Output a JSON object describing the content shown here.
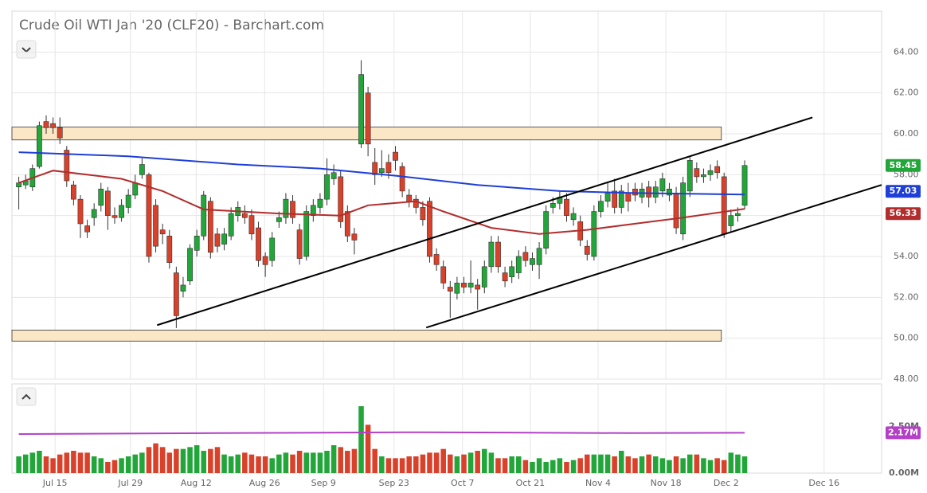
{
  "chart_data": {
    "type": "candlestick",
    "title": "Crude Oil WTI Jan '20 (CLF20) - Barchart.com",
    "up_color": "#22a63a",
    "down_color": "#d9412a",
    "grid": true,
    "xlim": [
      0,
      127
    ],
    "xticks": [
      {
        "value": 6.3,
        "label": "Jul 15"
      },
      {
        "value": 17.3,
        "label": "Jul 29"
      },
      {
        "value": 26.9,
        "label": "Aug 12"
      },
      {
        "value": 36.9,
        "label": "Aug 26"
      },
      {
        "value": 45.5,
        "label": "Sep 9"
      },
      {
        "value": 55.8,
        "label": "Sep 23"
      },
      {
        "value": 65.8,
        "label": "Oct 7"
      },
      {
        "value": 75.7,
        "label": "Oct 21"
      },
      {
        "value": 85.6,
        "label": "Nov 4"
      },
      {
        "value": 95.5,
        "label": "Nov 18"
      },
      {
        "value": 104.3,
        "label": "Dec 2"
      },
      {
        "value": 118.6,
        "label": "Dec 16"
      }
    ],
    "ylim": [
      48,
      66
    ],
    "yticks": [
      {
        "value": 48,
        "label": "48.00"
      },
      {
        "value": 50,
        "label": "50.00"
      },
      {
        "value": 52,
        "label": "52.00"
      },
      {
        "value": 54,
        "label": "54.00"
      },
      {
        "value": 56,
        "label": "56.00"
      },
      {
        "value": 58,
        "label": "58.00"
      },
      {
        "value": 60,
        "label": "60.00"
      },
      {
        "value": 62,
        "label": "62.00"
      },
      {
        "value": 64,
        "label": "64.00"
      }
    ],
    "x": [
      1,
      2,
      3,
      4,
      5,
      6,
      7,
      8,
      9,
      10,
      11,
      12,
      13,
      14,
      15,
      16,
      17,
      18,
      19,
      20,
      21,
      22,
      23,
      24,
      25,
      26,
      27,
      28,
      29,
      30,
      31,
      32,
      33,
      34,
      35,
      36,
      37,
      38,
      39,
      40,
      41,
      42,
      43,
      44,
      45,
      46,
      47,
      48,
      49,
      50,
      51,
      52,
      53,
      54,
      55,
      56,
      57,
      58,
      59,
      60,
      61,
      62,
      63,
      64,
      65,
      66,
      67,
      68,
      69,
      70,
      71,
      72,
      73,
      74,
      75,
      76,
      77,
      78,
      79,
      80,
      81,
      82,
      83,
      84,
      85,
      86,
      87,
      88,
      89,
      90,
      91,
      92,
      93,
      94,
      95,
      96,
      97,
      98,
      99,
      100,
      101,
      102,
      103,
      104,
      105,
      106,
      107
    ],
    "open": [
      57.4,
      57.5,
      57.4,
      58.4,
      60.6,
      60.5,
      60.3,
      59.2,
      57.5,
      56.8,
      55.5,
      55.9,
      56.5,
      57.2,
      56.0,
      55.9,
      56.4,
      57.0,
      58.0,
      58.0,
      56.5,
      55.3,
      55.0,
      53.2,
      52.3,
      52.8,
      54.3,
      55.0,
      56.7,
      55.1,
      54.6,
      55.0,
      56.0,
      56.1,
      56.0,
      55.4,
      54.0,
      53.8,
      55.7,
      55.9,
      56.7,
      55.3,
      54.0,
      56.0,
      56.4,
      56.8,
      57.8,
      57.9,
      56.2,
      55.1,
      59.5,
      62.0,
      58.6,
      58.1,
      58.6,
      59.1,
      58.4,
      57.0,
      56.8,
      56.4,
      56.7,
      54.1,
      53.5,
      52.5,
      52.2,
      52.7,
      52.5,
      52.6,
      52.5,
      53.5,
      54.7,
      53.2,
      53.0,
      53.2,
      54.2,
      53.6,
      53.6,
      54.4,
      56.4,
      56.6,
      56.8,
      55.8,
      55.7,
      54.5,
      54.0,
      56.2,
      56.7,
      57.2,
      56.4,
      57.1,
      57.3,
      56.9,
      57.4,
      56.9,
      57.2,
      57.0,
      57.1,
      55.1,
      57.2,
      58.3,
      57.9,
      58.0,
      58.4,
      57.9,
      55.5,
      56.0,
      56.5
    ],
    "high": [
      57.9,
      58.0,
      58.5,
      60.6,
      60.9,
      60.8,
      60.8,
      59.4,
      57.7,
      57.0,
      55.8,
      56.6,
      57.6,
      57.4,
      56.4,
      56.8,
      57.3,
      58.0,
      58.8,
      58.1,
      56.8,
      55.6,
      55.3,
      53.5,
      53.0,
      54.6,
      55.3,
      57.2,
      56.9,
      55.4,
      55.4,
      56.4,
      56.7,
      56.5,
      56.3,
      55.7,
      54.2,
      55.2,
      56.2,
      57.1,
      57.0,
      55.6,
      56.5,
      56.8,
      57.1,
      58.8,
      58.5,
      58.2,
      56.5,
      55.4,
      63.6,
      62.3,
      59.3,
      59.2,
      59.0,
      59.4,
      58.6,
      57.3,
      57.0,
      56.7,
      56.9,
      54.4,
      53.8,
      52.8,
      53.0,
      53.0,
      53.8,
      52.9,
      53.8,
      55.0,
      55.0,
      53.5,
      53.8,
      54.3,
      54.5,
      54.2,
      54.7,
      56.5,
      56.9,
      57.2,
      57.1,
      56.4,
      56.0,
      54.8,
      56.5,
      57.0,
      57.6,
      57.8,
      57.5,
      57.6,
      57.6,
      57.6,
      57.7,
      57.7,
      58.1,
      57.6,
      57.4,
      57.9,
      58.9,
      58.6,
      58.3,
      58.5,
      58.7,
      58.1,
      56.3,
      56.4,
      58.7
    ],
    "low": [
      56.3,
      57.3,
      57.2,
      58.3,
      60.0,
      60.0,
      59.5,
      57.4,
      56.5,
      54.9,
      54.9,
      55.5,
      56.2,
      55.3,
      55.6,
      55.7,
      56.1,
      56.8,
      57.8,
      53.7,
      54.2,
      54.6,
      53.4,
      50.5,
      52.0,
      52.6,
      54.0,
      54.8,
      53.9,
      54.2,
      54.3,
      54.8,
      55.7,
      55.6,
      54.8,
      53.5,
      53.0,
      53.5,
      55.4,
      55.6,
      55.6,
      53.6,
      53.8,
      55.7,
      56.1,
      56.5,
      57.5,
      55.4,
      54.7,
      54.1,
      59.3,
      58.9,
      57.5,
      57.9,
      57.8,
      58.2,
      56.9,
      56.4,
      56.1,
      55.5,
      53.7,
      53.3,
      52.4,
      51.0,
      51.9,
      52.2,
      52.2,
      51.4,
      52.2,
      53.2,
      53.2,
      52.5,
      52.7,
      52.9,
      53.5,
      53.3,
      52.9,
      54.1,
      56.1,
      56.3,
      55.7,
      55.5,
      54.5,
      53.8,
      53.8,
      55.9,
      56.4,
      56.1,
      56.1,
      56.2,
      56.7,
      56.6,
      56.4,
      56.6,
      56.9,
      56.7,
      55.1,
      54.8,
      56.9,
      57.6,
      57.6,
      57.7,
      57.8,
      54.9,
      55.2,
      55.7,
      56.3
    ],
    "close": [
      57.6,
      57.7,
      58.3,
      60.4,
      60.3,
      60.3,
      59.8,
      57.7,
      56.8,
      55.6,
      55.2,
      56.3,
      57.3,
      56.0,
      55.9,
      56.5,
      57.0,
      57.6,
      58.5,
      54.0,
      54.5,
      55.1,
      53.7,
      51.1,
      52.6,
      54.4,
      55.0,
      57.0,
      54.2,
      54.5,
      55.1,
      56.1,
      56.4,
      55.9,
      55.1,
      53.8,
      53.6,
      54.9,
      55.9,
      56.8,
      55.9,
      53.9,
      56.2,
      56.5,
      56.8,
      58.0,
      58.1,
      55.7,
      55.0,
      54.8,
      62.9,
      59.5,
      58.0,
      58.3,
      58.1,
      58.7,
      57.2,
      56.7,
      56.4,
      55.8,
      54.0,
      53.6,
      52.7,
      52.3,
      52.7,
      52.5,
      52.7,
      52.4,
      53.5,
      54.7,
      53.5,
      52.8,
      53.5,
      54.0,
      53.8,
      53.9,
      54.4,
      56.2,
      56.6,
      56.9,
      56.0,
      56.1,
      54.8,
      54.1,
      56.2,
      56.7,
      57.1,
      56.4,
      57.2,
      56.7,
      57.0,
      57.3,
      56.9,
      57.4,
      57.8,
      57.3,
      55.4,
      57.6,
      58.7,
      57.9,
      58.0,
      58.2,
      58.1,
      55.1,
      56.0,
      56.1,
      58.45
    ],
    "overlays": [
      {
        "color": "#1f3fd6",
        "x": [
          1,
          17,
          33,
          45,
          56,
          68,
          80,
          91,
          107
        ],
        "values": [
          59.1,
          58.9,
          58.5,
          58.3,
          57.95,
          57.5,
          57.2,
          57.1,
          57.03
        ]
      },
      {
        "color": "#b22d2d",
        "x": [
          1,
          6,
          16,
          22,
          28,
          39,
          48,
          52,
          59,
          63,
          70,
          77,
          84,
          91,
          98,
          107
        ],
        "values": [
          57.6,
          58.2,
          57.8,
          57.2,
          56.3,
          56.1,
          56.0,
          56.5,
          56.7,
          56.2,
          55.4,
          55.1,
          55.3,
          55.6,
          55.9,
          56.33
        ]
      }
    ],
    "zones": [
      {
        "color": "#fbe7c6",
        "x": [
          0,
          103.6
        ],
        "values": [
          59.7,
          60.33
        ]
      },
      {
        "color": "#fbe7c6",
        "x": [
          0,
          103.6
        ],
        "values": [
          49.86,
          50.4
        ]
      }
    ],
    "trendlines": [
      {
        "x": [
          21.2,
          116.9
        ],
        "values": [
          50.64,
          60.8
        ]
      },
      {
        "x": [
          60.5,
          127
        ],
        "values": [
          50.52,
          57.5
        ]
      }
    ],
    "volume": {
      "ylim": [
        0,
        4.8
      ],
      "yticks": [
        {
          "value": 0,
          "label": "0.00M"
        },
        {
          "value": 2.5,
          "label": "2.50M"
        }
      ],
      "values": [
        0.9,
        1.0,
        1.1,
        1.2,
        0.9,
        0.8,
        1.0,
        1.1,
        1.2,
        1.1,
        1.1,
        0.9,
        0.8,
        0.6,
        0.7,
        0.8,
        0.9,
        1.0,
        1.1,
        1.4,
        1.6,
        1.4,
        1.1,
        1.3,
        1.3,
        1.4,
        1.5,
        1.2,
        1.3,
        1.4,
        1.0,
        0.9,
        1.0,
        1.1,
        1.0,
        0.9,
        0.9,
        0.8,
        1.0,
        1.1,
        1.0,
        1.2,
        1.1,
        1.1,
        1.1,
        1.2,
        1.5,
        1.4,
        1.2,
        1.3,
        3.6,
        2.6,
        1.3,
        0.9,
        0.8,
        0.8,
        0.8,
        0.9,
        0.9,
        1.0,
        1.1,
        1.1,
        1.3,
        1.0,
        0.9,
        1.0,
        1.1,
        1.2,
        1.3,
        1.1,
        0.8,
        0.8,
        0.9,
        0.9,
        0.7,
        0.6,
        0.8,
        0.6,
        0.7,
        0.8,
        0.6,
        0.7,
        0.8,
        1.0,
        1.0,
        1.0,
        1.0,
        0.9,
        1.2,
        0.9,
        0.8,
        0.9,
        1.0,
        0.9,
        0.8,
        0.7,
        0.9,
        0.8,
        1.0,
        1.0,
        0.8,
        0.7,
        0.8,
        0.7,
        1.1,
        1.0,
        0.9
      ],
      "average": {
        "color": "#b340c7",
        "x": [
          1,
          30,
          60,
          90,
          107
        ],
        "values": [
          2.1,
          2.15,
          2.2,
          2.15,
          2.17
        ],
        "value_labels": [
          null,
          null,
          null,
          null,
          "2.17M"
        ]
      }
    }
  }
}
